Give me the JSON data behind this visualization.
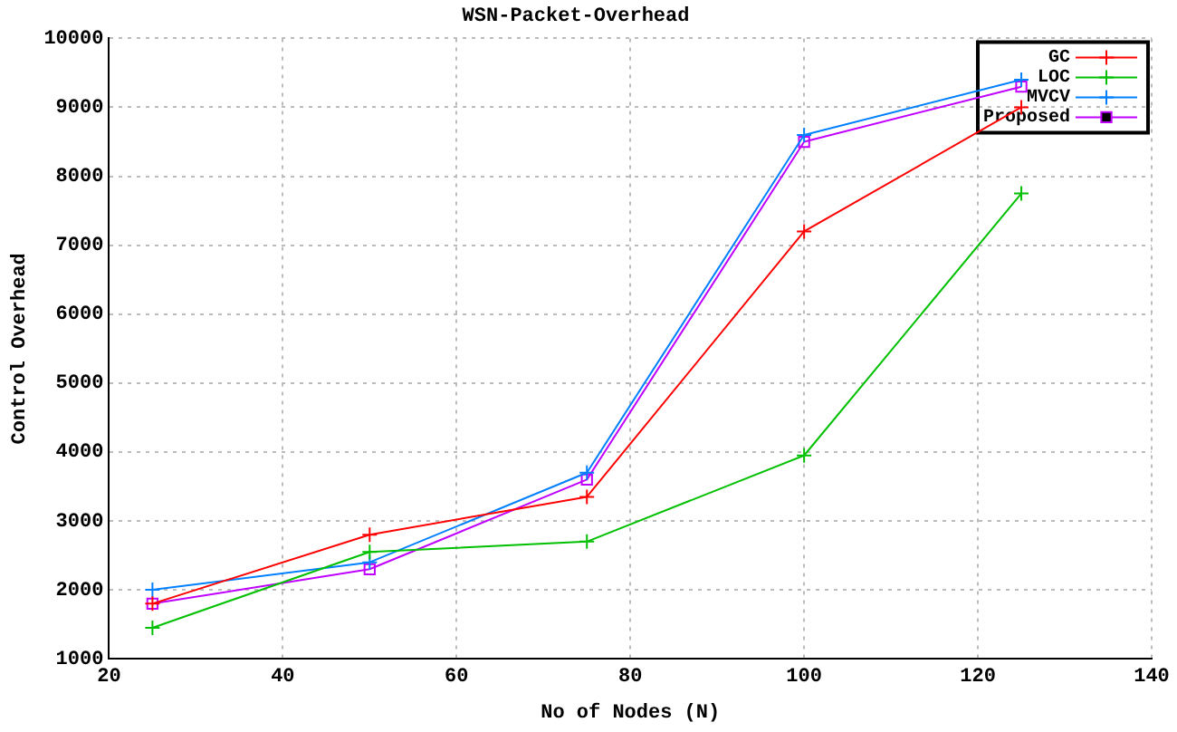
{
  "chart_data": {
    "type": "line",
    "title": "WSN-Packet-Overhead",
    "xlabel": "No of Nodes (N)",
    "ylabel": "Control Overhead",
    "x": [
      25,
      50,
      75,
      100,
      125
    ],
    "series": [
      {
        "name": "GC",
        "color": "#ff0000",
        "marker": "cross",
        "values": [
          1800,
          2800,
          3350,
          7200,
          9000
        ]
      },
      {
        "name": "LOC",
        "color": "#00c000",
        "marker": "cross",
        "values": [
          1450,
          2550,
          2700,
          3950,
          7750
        ]
      },
      {
        "name": "MVCV",
        "color": "#0080ff",
        "marker": "cross",
        "values": [
          2000,
          2400,
          3700,
          8600,
          9400
        ]
      },
      {
        "name": "Proposed",
        "color": "#c000ff",
        "marker": "square",
        "values": [
          1800,
          2300,
          3600,
          8500,
          9300
        ]
      }
    ],
    "xlim": [
      20,
      140
    ],
    "xticks": [
      20,
      40,
      60,
      80,
      100,
      120,
      140
    ],
    "ylim": [
      1000,
      10000
    ],
    "yticks": [
      1000,
      2000,
      3000,
      4000,
      5000,
      6000,
      7000,
      8000,
      9000,
      10000
    ],
    "grid": true,
    "legend": "top right"
  }
}
